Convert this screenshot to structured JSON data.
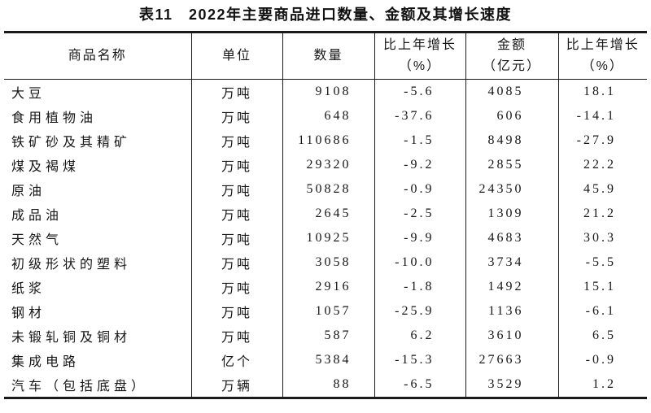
{
  "title": "表11　2022年主要商品进口数量、金额及其增长速度",
  "colors": {
    "background": "#ffffff",
    "border": "#1a1a1a",
    "text": "#161616"
  },
  "table": {
    "headers": [
      {
        "lines": [
          "商品名称"
        ]
      },
      {
        "lines": [
          "单位"
        ]
      },
      {
        "lines": [
          "数量"
        ]
      },
      {
        "lines": [
          "比上年增长",
          "（%）"
        ]
      },
      {
        "lines": [
          "金额",
          "（亿元）"
        ]
      },
      {
        "lines": [
          "比上年增长",
          "（%）"
        ]
      }
    ],
    "rows": [
      {
        "name": "大豆",
        "unit": "万吨",
        "quantity": "9108",
        "quantity_growth": "-5.6",
        "amount": "4085",
        "amount_growth": "18.1"
      },
      {
        "name": "食用植物油",
        "unit": "万吨",
        "quantity": "648",
        "quantity_growth": "-37.6",
        "amount": "606",
        "amount_growth": "-14.1"
      },
      {
        "name": "铁矿砂及其精矿",
        "unit": "万吨",
        "quantity": "110686",
        "quantity_growth": "-1.5",
        "amount": "8498",
        "amount_growth": "-27.9"
      },
      {
        "name": "煤及褐煤",
        "unit": "万吨",
        "quantity": "29320",
        "quantity_growth": "-9.2",
        "amount": "2855",
        "amount_growth": "22.2"
      },
      {
        "name": "原油",
        "unit": "万吨",
        "quantity": "50828",
        "quantity_growth": "-0.9",
        "amount": "24350",
        "amount_growth": "45.9"
      },
      {
        "name": "成品油",
        "unit": "万吨",
        "quantity": "2645",
        "quantity_growth": "-2.5",
        "amount": "1309",
        "amount_growth": "21.2"
      },
      {
        "name": "天然气",
        "unit": "万吨",
        "quantity": "10925",
        "quantity_growth": "-9.9",
        "amount": "4683",
        "amount_growth": "30.3"
      },
      {
        "name": "初级形状的塑料",
        "unit": "万吨",
        "quantity": "3058",
        "quantity_growth": "-10.0",
        "amount": "3734",
        "amount_growth": "-5.5"
      },
      {
        "name": "纸浆",
        "unit": "万吨",
        "quantity": "2916",
        "quantity_growth": "-1.8",
        "amount": "1492",
        "amount_growth": "15.1"
      },
      {
        "name": "钢材",
        "unit": "万吨",
        "quantity": "1057",
        "quantity_growth": "-25.9",
        "amount": "1136",
        "amount_growth": "-6.1"
      },
      {
        "name": "未锻轧铜及铜材",
        "unit": "万吨",
        "quantity": "587",
        "quantity_growth": "6.2",
        "amount": "3610",
        "amount_growth": "6.5"
      },
      {
        "name": "集成电路",
        "unit": "亿个",
        "quantity": "5384",
        "quantity_growth": "-15.3",
        "amount": "27663",
        "amount_growth": "-0.9"
      },
      {
        "name": "汽车（包括底盘）",
        "unit": "万辆",
        "quantity": "88",
        "quantity_growth": "-6.5",
        "amount": "3529",
        "amount_growth": "1.2"
      }
    ]
  }
}
